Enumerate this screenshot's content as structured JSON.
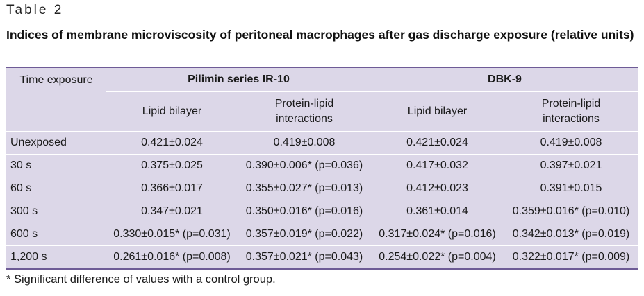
{
  "table_label": "Table 2",
  "caption": "Indices of membrane microviscosity of peritoneal macrophages after gas discharge exposure (relative units)",
  "header": {
    "time_col": "Time exposure",
    "group1": "Pilimin series IR-10",
    "group2": "DBK-9",
    "sub": [
      "Lipid bilayer",
      "Protein-lipid interactions",
      "Lipid bilayer",
      "Protein-lipid interactions"
    ]
  },
  "rows": [
    {
      "time": "Unexposed",
      "c1": "0.421±0.024",
      "c2": "0.419±0.008",
      "c3": "0.421±0.024",
      "c4": "0.419±0.008"
    },
    {
      "time": "30 s",
      "c1": "0.375±0.025",
      "c2": "0.390±0.006* (p=0.036)",
      "c3": "0.417±0.032",
      "c4": "0.397±0.021"
    },
    {
      "time": "60 s",
      "c1": "0.366±0.017",
      "c2": "0.355±0.027* (p=0.013)",
      "c3": "0.412±0.023",
      "c4": "0.391±0.015"
    },
    {
      "time": "300 s",
      "c1": "0.347±0.021",
      "c2": "0.350±0.016* (p=0.016)",
      "c3": "0.361±0.014",
      "c4": "0.359±0.016* (p=0.010)"
    },
    {
      "time": "600 s",
      "c1": "0.330±0.015* (p=0.031)",
      "c2": "0.357±0.019* (p=0.022)",
      "c3": "0.317±0.024* (p=0.016)",
      "c4": "0.342±0.013* (p=0.019)"
    },
    {
      "time": "1,200 s",
      "c1": "0.261±0.016* (p=0.008)",
      "c2": "0.357±0.021* (p=0.043)",
      "c3": "0.254±0.022* (p=0.004)",
      "c4": "0.322±0.017* (p=0.009)"
    }
  ],
  "footnote": "* Significant difference of values with a control group.",
  "colors": {
    "table_bg": "#dcd7e8",
    "rule": "#6e5b96"
  }
}
